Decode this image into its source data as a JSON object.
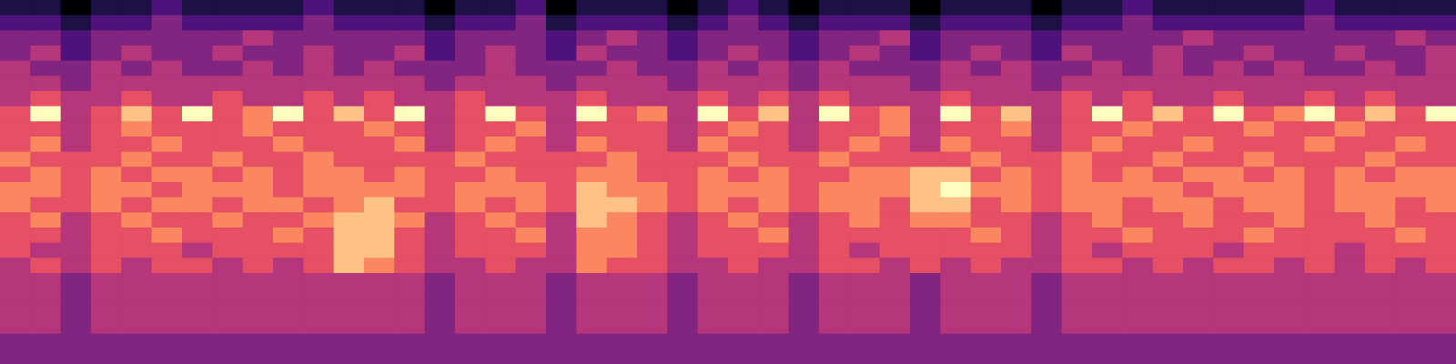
{
  "chart_data": {
    "type": "heatmap",
    "tick_labels": false,
    "cells": [
      [
        2,
        2,
        1,
        2,
        2,
        3,
        2,
        2,
        2,
        2,
        3,
        2,
        2,
        2,
        1,
        2,
        2,
        3,
        1,
        2,
        2,
        2,
        1,
        2,
        3,
        2,
        1,
        2,
        2,
        2,
        1,
        2,
        2,
        2,
        1,
        2,
        2,
        3,
        2,
        2,
        2,
        2,
        2,
        3,
        2,
        2,
        2,
        2
      ],
      [
        3,
        3,
        2,
        3,
        3,
        4,
        3,
        3,
        3,
        3,
        4,
        3,
        3,
        3,
        2,
        3,
        3,
        4,
        2,
        3,
        3,
        3,
        2,
        3,
        4,
        3,
        2,
        3,
        3,
        3,
        2,
        3,
        3,
        3,
        2,
        3,
        3,
        4,
        3,
        3,
        3,
        3,
        3,
        4,
        3,
        3,
        3,
        3
      ],
      [
        4,
        4,
        3,
        4,
        4,
        4,
        4,
        4,
        5,
        4,
        4,
        4,
        4,
        4,
        3,
        4,
        4,
        4,
        3,
        4,
        5,
        4,
        3,
        4,
        4,
        4,
        3,
        4,
        4,
        5,
        3,
        4,
        4,
        4,
        3,
        4,
        4,
        4,
        4,
        5,
        4,
        4,
        4,
        4,
        4,
        4,
        5,
        4
      ],
      [
        4,
        5,
        3,
        4,
        5,
        4,
        4,
        5,
        4,
        4,
        5,
        4,
        4,
        5,
        3,
        4,
        5,
        4,
        3,
        5,
        4,
        4,
        3,
        4,
        5,
        4,
        3,
        4,
        5,
        4,
        3,
        4,
        5,
        4,
        3,
        5,
        4,
        4,
        5,
        4,
        4,
        5,
        4,
        4,
        5,
        4,
        4,
        5
      ],
      [
        5,
        4,
        4,
        5,
        4,
        5,
        4,
        4,
        5,
        4,
        5,
        4,
        5,
        4,
        4,
        4,
        5,
        4,
        4,
        4,
        5,
        4,
        4,
        5,
        4,
        5,
        4,
        5,
        4,
        4,
        4,
        5,
        4,
        5,
        4,
        4,
        5,
        4,
        5,
        4,
        5,
        4,
        5,
        4,
        4,
        5,
        4,
        5
      ],
      [
        5,
        5,
        4,
        5,
        5,
        5,
        5,
        5,
        5,
        5,
        5,
        5,
        5,
        5,
        4,
        5,
        5,
        5,
        4,
        5,
        5,
        5,
        4,
        5,
        5,
        5,
        4,
        5,
        5,
        5,
        4,
        5,
        5,
        5,
        4,
        5,
        5,
        5,
        5,
        5,
        5,
        5,
        5,
        5,
        5,
        5,
        5,
        5
      ],
      [
        5,
        6,
        5,
        5,
        6,
        5,
        5,
        6,
        5,
        5,
        6,
        5,
        6,
        5,
        5,
        6,
        5,
        5,
        5,
        6,
        5,
        5,
        5,
        6,
        5,
        6,
        5,
        6,
        5,
        5,
        5,
        6,
        5,
        5,
        5,
        6,
        5,
        6,
        5,
        5,
        6,
        5,
        5,
        6,
        5,
        6,
        5,
        5
      ],
      [
        6,
        9,
        5,
        6,
        8,
        6,
        9,
        6,
        7,
        9,
        6,
        8,
        6,
        9,
        5,
        6,
        9,
        6,
        5,
        9,
        6,
        7,
        5,
        9,
        6,
        8,
        5,
        9,
        6,
        7,
        5,
        9,
        6,
        8,
        5,
        6,
        9,
        6,
        8,
        6,
        9,
        6,
        7,
        9,
        6,
        8,
        6,
        9
      ],
      [
        6,
        6,
        5,
        6,
        7,
        6,
        6,
        6,
        7,
        6,
        6,
        6,
        7,
        6,
        5,
        6,
        6,
        7,
        5,
        6,
        6,
        6,
        5,
        6,
        7,
        6,
        5,
        6,
        6,
        7,
        5,
        6,
        6,
        7,
        5,
        6,
        6,
        7,
        6,
        6,
        6,
        7,
        6,
        6,
        7,
        6,
        6,
        6
      ],
      [
        6,
        7,
        5,
        6,
        6,
        7,
        6,
        6,
        6,
        7,
        6,
        6,
        6,
        7,
        5,
        6,
        7,
        6,
        5,
        7,
        6,
        6,
        5,
        7,
        6,
        6,
        5,
        6,
        7,
        6,
        5,
        7,
        6,
        6,
        5,
        6,
        7,
        6,
        6,
        7,
        6,
        6,
        6,
        7,
        6,
        6,
        7,
        6
      ],
      [
        7,
        6,
        6,
        6,
        7,
        6,
        6,
        7,
        6,
        6,
        7,
        6,
        6,
        6,
        6,
        7,
        6,
        6,
        6,
        6,
        7,
        6,
        6,
        6,
        7,
        6,
        6,
        7,
        6,
        6,
        6,
        6,
        7,
        6,
        6,
        7,
        6,
        6,
        7,
        6,
        6,
        7,
        6,
        6,
        6,
        7,
        6,
        6
      ],
      [
        6,
        7,
        6,
        7,
        6,
        7,
        7,
        6,
        7,
        6,
        7,
        7,
        6,
        7,
        6,
        6,
        7,
        6,
        6,
        7,
        7,
        6,
        6,
        7,
        6,
        7,
        6,
        6,
        7,
        7,
        8,
        8,
        6,
        7,
        6,
        7,
        6,
        7,
        6,
        7,
        7,
        6,
        7,
        6,
        7,
        6,
        7,
        7
      ],
      [
        7,
        7,
        6,
        7,
        7,
        6,
        7,
        7,
        7,
        6,
        7,
        7,
        7,
        7,
        6,
        7,
        7,
        7,
        6,
        8,
        7,
        7,
        6,
        7,
        7,
        7,
        6,
        7,
        7,
        7,
        8,
        9,
        7,
        7,
        6,
        7,
        7,
        7,
        7,
        6,
        7,
        7,
        7,
        6,
        7,
        7,
        7,
        7
      ],
      [
        7,
        6,
        6,
        7,
        6,
        7,
        7,
        6,
        7,
        7,
        6,
        7,
        8,
        6,
        6,
        7,
        6,
        7,
        6,
        8,
        8,
        7,
        6,
        7,
        6,
        7,
        6,
        7,
        7,
        6,
        8,
        8,
        6,
        7,
        6,
        7,
        7,
        6,
        7,
        7,
        6,
        7,
        7,
        6,
        7,
        7,
        6,
        7
      ],
      [
        6,
        7,
        5,
        6,
        7,
        6,
        6,
        7,
        6,
        6,
        7,
        8,
        8,
        7,
        5,
        6,
        7,
        6,
        5,
        8,
        7,
        6,
        5,
        6,
        7,
        6,
        5,
        6,
        7,
        6,
        7,
        7,
        6,
        6,
        5,
        6,
        7,
        6,
        6,
        7,
        6,
        6,
        7,
        6,
        6,
        7,
        6,
        6
      ],
      [
        6,
        6,
        5,
        6,
        6,
        7,
        6,
        6,
        6,
        7,
        6,
        8,
        8,
        6,
        5,
        6,
        6,
        7,
        5,
        7,
        7,
        6,
        5,
        6,
        6,
        7,
        5,
        6,
        6,
        6,
        6,
        6,
        7,
        6,
        5,
        6,
        6,
        7,
        6,
        6,
        6,
        7,
        6,
        6,
        6,
        6,
        7,
        6
      ],
      [
        6,
        5,
        5,
        6,
        6,
        6,
        5,
        6,
        6,
        6,
        6,
        8,
        8,
        6,
        5,
        6,
        6,
        6,
        5,
        7,
        7,
        6,
        5,
        6,
        6,
        6,
        5,
        6,
        5,
        6,
        6,
        6,
        6,
        6,
        5,
        6,
        5,
        6,
        6,
        6,
        5,
        6,
        6,
        6,
        5,
        6,
        6,
        6
      ],
      [
        5,
        6,
        5,
        6,
        5,
        6,
        6,
        5,
        6,
        5,
        6,
        8,
        7,
        6,
        5,
        5,
        6,
        5,
        5,
        7,
        6,
        6,
        5,
        5,
        6,
        5,
        5,
        6,
        6,
        5,
        6,
        5,
        6,
        5,
        5,
        6,
        6,
        5,
        6,
        5,
        6,
        6,
        5,
        6,
        5,
        6,
        5,
        6
      ],
      [
        5,
        5,
        4,
        5,
        5,
        5,
        5,
        5,
        5,
        5,
        5,
        5,
        5,
        5,
        4,
        5,
        5,
        5,
        4,
        5,
        5,
        5,
        4,
        5,
        5,
        5,
        4,
        5,
        5,
        5,
        4,
        5,
        5,
        5,
        4,
        5,
        5,
        5,
        5,
        5,
        5,
        5,
        5,
        5,
        5,
        5,
        5,
        5
      ],
      [
        5,
        5,
        4,
        5,
        5,
        5,
        5,
        5,
        5,
        5,
        5,
        5,
        5,
        5,
        4,
        5,
        5,
        5,
        4,
        5,
        5,
        5,
        4,
        5,
        5,
        5,
        4,
        5,
        5,
        5,
        4,
        5,
        5,
        5,
        4,
        5,
        5,
        5,
        5,
        5,
        5,
        5,
        5,
        5,
        5,
        5,
        5,
        5
      ],
      [
        5,
        5,
        4,
        5,
        5,
        5,
        5,
        5,
        5,
        5,
        5,
        5,
        5,
        5,
        4,
        5,
        5,
        5,
        4,
        5,
        5,
        5,
        4,
        5,
        5,
        5,
        4,
        5,
        5,
        5,
        4,
        5,
        5,
        5,
        4,
        5,
        5,
        5,
        5,
        5,
        5,
        5,
        5,
        5,
        5,
        5,
        5,
        5
      ],
      [
        5,
        5,
        4,
        5,
        5,
        5,
        5,
        5,
        5,
        5,
        5,
        5,
        5,
        5,
        4,
        5,
        5,
        5,
        4,
        5,
        5,
        5,
        4,
        5,
        5,
        5,
        4,
        5,
        5,
        5,
        4,
        5,
        5,
        5,
        4,
        5,
        5,
        5,
        5,
        5,
        5,
        5,
        5,
        5,
        5,
        5,
        5,
        5
      ],
      [
        4,
        4,
        4,
        4,
        4,
        4,
        4,
        4,
        4,
        4,
        4,
        4,
        4,
        4,
        4,
        4,
        4,
        4,
        4,
        4,
        4,
        4,
        4,
        4,
        4,
        4,
        4,
        4,
        4,
        4,
        4,
        4,
        4,
        4,
        4,
        4,
        4,
        4,
        4,
        4,
        4,
        4,
        4,
        4,
        4,
        4,
        4,
        4
      ],
      [
        4,
        4,
        4,
        4,
        4,
        4,
        4,
        4,
        4,
        4,
        4,
        4,
        4,
        4,
        4,
        4,
        4,
        4,
        4,
        4,
        4,
        4,
        4,
        4,
        4,
        4,
        4,
        4,
        4,
        4,
        4,
        4,
        4,
        4,
        4,
        4,
        4,
        4,
        4,
        4,
        4,
        4,
        4,
        4,
        4,
        4,
        4,
        4
      ]
    ]
  }
}
